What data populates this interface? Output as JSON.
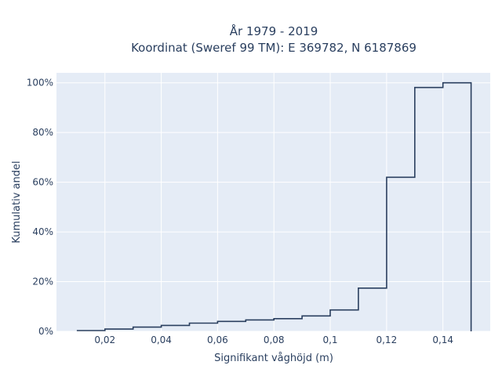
{
  "chart_data": {
    "type": "histogram-step",
    "title_lines": [
      "År 1979 - 2019",
      "Koordinat (Sweref 99 TM): E 369782, N 6187869"
    ],
    "xlabel": "Signifikant våghöjd (m)",
    "ylabel": "Kumulativ andel",
    "xlim": [
      0.0028,
      0.1568
    ],
    "ylim": [
      0,
      104
    ],
    "x_ticks": [
      {
        "value": 0.02,
        "label": "0,02"
      },
      {
        "value": 0.04,
        "label": "0,04"
      },
      {
        "value": 0.06,
        "label": "0,06"
      },
      {
        "value": 0.08,
        "label": "0,08"
      },
      {
        "value": 0.1,
        "label": "0,1"
      },
      {
        "value": 0.12,
        "label": "0,12"
      },
      {
        "value": 0.14,
        "label": "0,14"
      }
    ],
    "y_ticks": [
      {
        "value": 0,
        "label": "0%"
      },
      {
        "value": 20,
        "label": "20%"
      },
      {
        "value": 40,
        "label": "40%"
      },
      {
        "value": 60,
        "label": "60%"
      },
      {
        "value": 80,
        "label": "80%"
      },
      {
        "value": 100,
        "label": "100%"
      }
    ],
    "bin_edges": [
      0.01,
      0.02,
      0.03,
      0.04,
      0.05,
      0.06,
      0.07,
      0.08,
      0.09,
      0.1,
      0.11,
      0.12,
      0.13,
      0.14,
      0.15
    ],
    "values": [
      0.3,
      0.9,
      1.7,
      2.4,
      3.3,
      4.0,
      4.6,
      5.1,
      6.2,
      8.6,
      17.4,
      62.0,
      98.1,
      100.0
    ],
    "grid": true,
    "line_color": "#2a3f5f",
    "plot_background": "#e5ecf6",
    "grid_color": "#ffffff"
  }
}
